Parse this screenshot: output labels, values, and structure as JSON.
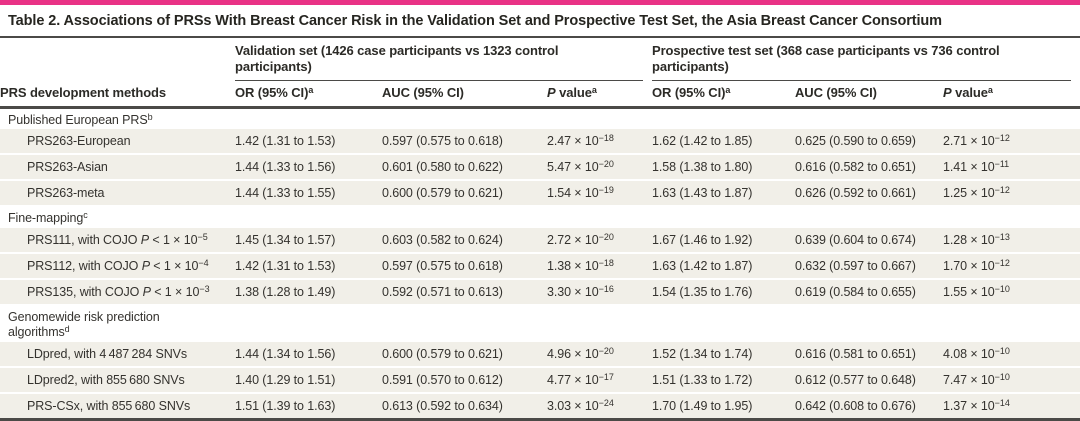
{
  "title": "Table 2. Associations of PRSs With Breast Cancer Risk in the Validation Set and Prospective Test Set, the Asia Breast Cancer Consortium",
  "colors": {
    "accent_pink": "#e93286",
    "rule_dark": "#4b4a47",
    "row_shade": "#f1efe8",
    "text": "#34322e"
  },
  "header": {
    "stub": "PRS development methods",
    "groups": [
      {
        "line1": "Validation set (1426 case participants vs 1323 control",
        "line2": "participants)"
      },
      {
        "line1": "Prospective test set (368 case participants vs 736 control",
        "line2": "participants)"
      }
    ],
    "columns": [
      {
        "label": "OR (95% CI)",
        "sup": "a"
      },
      {
        "label": "AUC (95% CI)",
        "sup": ""
      },
      {
        "p": "P",
        "label": " value",
        "sup": "a"
      },
      {
        "label": "OR (95% CI)",
        "sup": "a"
      },
      {
        "label": "AUC (95% CI)",
        "sup": ""
      },
      {
        "p": "P",
        "label": " value",
        "sup": "a"
      }
    ]
  },
  "sections": [
    {
      "label": "Published European PRS",
      "sup": "b",
      "rows": [
        {
          "label": "PRS263-European",
          "v_or": "1.42 (1.31 to 1.53)",
          "v_auc": "0.597 (0.575 to 0.618)",
          "v_p_base": "2.47 × 10",
          "v_p_exp": "−18",
          "t_or": "1.62 (1.42 to 1.85)",
          "t_auc": "0.625 (0.590 to 0.659)",
          "t_p_base": "2.71 × 10",
          "t_p_exp": "−12"
        },
        {
          "label": "PRS263-Asian",
          "v_or": "1.44 (1.33 to 1.56)",
          "v_auc": "0.601 (0.580 to 0.622)",
          "v_p_base": "5.47 × 10",
          "v_p_exp": "−20",
          "t_or": "1.58 (1.38 to 1.80)",
          "t_auc": "0.616 (0.582 to 0.651)",
          "t_p_base": "1.41 × 10",
          "t_p_exp": "−11"
        },
        {
          "label": "PRS263-meta",
          "v_or": "1.44 (1.33 to 1.55)",
          "v_auc": "0.600 (0.579 to 0.621)",
          "v_p_base": "1.54 × 10",
          "v_p_exp": "−19",
          "t_or": "1.63 (1.43 to 1.87)",
          "t_auc": "0.626 (0.592 to 0.661)",
          "t_p_base": "1.25 × 10",
          "t_p_exp": "−12"
        }
      ]
    },
    {
      "label": "Fine-mapping",
      "sup": "c",
      "rows": [
        {
          "label": "PRS111, with COJO ",
          "label_p": "P",
          "label_mid": " < 1 × 10",
          "label_exp": "−5",
          "v_or": "1.45 (1.34 to 1.57)",
          "v_auc": "0.603 (0.582 to 0.624)",
          "v_p_base": "2.72 × 10",
          "v_p_exp": "−20",
          "t_or": "1.67 (1.46 to 1.92)",
          "t_auc": "0.639 (0.604 to 0.674)",
          "t_p_base": "1.28 × 10",
          "t_p_exp": "−13"
        },
        {
          "label": "PRS112, with COJO ",
          "label_p": "P",
          "label_mid": " < 1 × 10",
          "label_exp": "−4",
          "v_or": "1.42 (1.31 to 1.53)",
          "v_auc": "0.597 (0.575 to 0.618)",
          "v_p_base": "1.38 × 10",
          "v_p_exp": "−18",
          "t_or": "1.63 (1.42 to 1.87)",
          "t_auc": "0.632 (0.597 to 0.667)",
          "t_p_base": "1.70 × 10",
          "t_p_exp": "−12"
        },
        {
          "label": "PRS135, with COJO ",
          "label_p": "P",
          "label_mid": " < 1 × 10",
          "label_exp": "−3",
          "v_or": "1.38 (1.28 to 1.49)",
          "v_auc": "0.592 (0.571 to 0.613)",
          "v_p_base": "3.30 × 10",
          "v_p_exp": "−16",
          "t_or": "1.54 (1.35 to 1.76)",
          "t_auc": "0.619 (0.584 to 0.655)",
          "t_p_base": "1.55 × 10",
          "t_p_exp": "−10"
        }
      ]
    },
    {
      "label": "Genomewide risk prediction",
      "label2": "algorithms",
      "sup": "d",
      "rows": [
        {
          "label": "LDpred, with 4 487 284 SNVs",
          "v_or": "1.44 (1.34 to 1.56)",
          "v_auc": "0.600 (0.579 to 0.621)",
          "v_p_base": "4.96 × 10",
          "v_p_exp": "−20",
          "t_or": "1.52 (1.34 to 1.74)",
          "t_auc": "0.616 (0.581 to 0.651)",
          "t_p_base": "4.08 × 10",
          "t_p_exp": "−10"
        },
        {
          "label": "LDpred2, with 855 680 SNVs",
          "v_or": "1.40 (1.29 to 1.51)",
          "v_auc": "0.591 (0.570 to 0.612)",
          "v_p_base": "4.77 × 10",
          "v_p_exp": "−17",
          "t_or": "1.51 (1.33 to 1.72)",
          "t_auc": "0.612 (0.577 to 0.648)",
          "t_p_base": "7.47 × 10",
          "t_p_exp": "−10"
        },
        {
          "label": "PRS-CSx, with 855 680 SNVs",
          "v_or": "1.51 (1.39 to 1.63)",
          "v_auc": "0.613 (0.592 to 0.634)",
          "v_p_base": "3.03 × 10",
          "v_p_exp": "−24",
          "t_or": "1.70 (1.49 to 1.95)",
          "t_auc": "0.642 (0.608 to 0.676)",
          "t_p_base": "1.37 × 10",
          "t_p_exp": "−14"
        }
      ]
    }
  ]
}
